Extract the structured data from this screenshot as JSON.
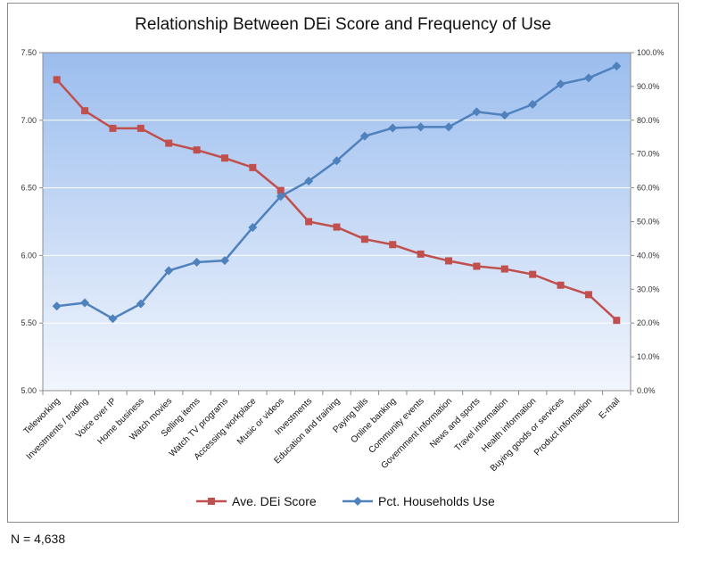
{
  "chart_data": {
    "type": "line",
    "title": "Relationship Between DEi Score and Frequency of Use",
    "xlabel": "",
    "ylabel": "",
    "y2label": "",
    "categories": [
      "Teleworking",
      "Investments / trading",
      "Voice over IP",
      "Home business",
      "Watch movies",
      "Selling items",
      "Watch TV programs",
      "Accessing workplace",
      "Music or videos",
      "Investments",
      "Education and training",
      "Paying bills",
      "Online banking",
      "Community events",
      "Government information",
      "News and sports",
      "Travel information",
      "Health information",
      "Buying goods or services",
      "Product information",
      "E-mail"
    ],
    "ylim": [
      5.0,
      7.5
    ],
    "y_ticks": [
      "5.00",
      "5.50",
      "6.00",
      "6.50",
      "7.00",
      "7.50"
    ],
    "y2lim": [
      0,
      100
    ],
    "y2_ticks": [
      "0.0%",
      "10.0%",
      "20.0%",
      "30.0%",
      "40.0%",
      "50.0%",
      "60.0%",
      "70.0%",
      "80.0%",
      "90.0%",
      "100.0%"
    ],
    "grid": true,
    "legend_position": "bottom",
    "series": [
      {
        "name": "Ave. DEi Score",
        "axis": "left",
        "color": "#c0504d",
        "marker": "square",
        "values": [
          7.3,
          7.07,
          6.94,
          6.94,
          6.83,
          6.78,
          6.72,
          6.65,
          6.48,
          6.25,
          6.21,
          6.12,
          6.08,
          6.01,
          5.96,
          5.92,
          5.9,
          5.86,
          5.78,
          5.71,
          5.52
        ]
      },
      {
        "name": "Pct. Households Use",
        "axis": "right",
        "color": "#4f81bd",
        "marker": "diamond",
        "values": [
          25.0,
          26.0,
          21.3,
          25.7,
          35.5,
          38.0,
          38.5,
          48.3,
          57.5,
          62.0,
          68.0,
          75.3,
          77.7,
          78.0,
          78.0,
          82.5,
          81.5,
          84.7,
          90.7,
          92.5,
          96.0
        ]
      }
    ]
  },
  "footnote": "N = 4,638"
}
